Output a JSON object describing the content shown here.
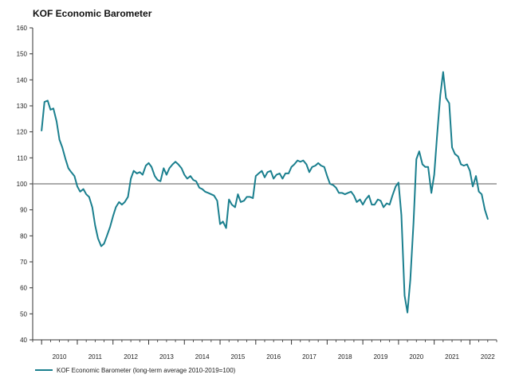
{
  "chart_data": {
    "type": "line",
    "title": "KOF Economic Barometer",
    "xlabel": "",
    "ylabel": "",
    "ylim": [
      40,
      160
    ],
    "yticks": [
      40,
      50,
      60,
      70,
      80,
      90,
      100,
      110,
      120,
      130,
      140,
      150,
      160
    ],
    "reference_line": 100,
    "x_tick_labels": [
      "2010",
      "2011",
      "2012",
      "2013",
      "2014",
      "2015",
      "2016",
      "2017",
      "2018",
      "2019",
      "2020",
      "2021",
      "2022"
    ],
    "x_start": 2009.75,
    "x_end": 2022.75,
    "legend": {
      "position": "bottom-left"
    },
    "series": [
      {
        "name": "KOF Economic Barometer (long-term average 2010-2019=100)",
        "color": "#1a7f8e",
        "points": [
          [
            2010.0,
            120.5
          ],
          [
            2010.08,
            131.5
          ],
          [
            2010.17,
            132.0
          ],
          [
            2010.25,
            128.5
          ],
          [
            2010.33,
            129.0
          ],
          [
            2010.42,
            124.0
          ],
          [
            2010.5,
            117.0
          ],
          [
            2010.58,
            114.0
          ],
          [
            2010.67,
            109.5
          ],
          [
            2010.75,
            106.0
          ],
          [
            2010.83,
            104.5
          ],
          [
            2010.92,
            103.0
          ],
          [
            2011.0,
            99.0
          ],
          [
            2011.08,
            97.0
          ],
          [
            2011.17,
            98.0
          ],
          [
            2011.25,
            96.0
          ],
          [
            2011.33,
            95.0
          ],
          [
            2011.42,
            91.0
          ],
          [
            2011.5,
            84.0
          ],
          [
            2011.58,
            79.0
          ],
          [
            2011.67,
            76.0
          ],
          [
            2011.75,
            77.0
          ],
          [
            2011.83,
            80.0
          ],
          [
            2011.92,
            83.5
          ],
          [
            2012.0,
            87.5
          ],
          [
            2012.08,
            91.0
          ],
          [
            2012.17,
            93.0
          ],
          [
            2012.25,
            92.0
          ],
          [
            2012.33,
            93.0
          ],
          [
            2012.42,
            95.0
          ],
          [
            2012.5,
            102.0
          ],
          [
            2012.58,
            105.0
          ],
          [
            2012.67,
            104.0
          ],
          [
            2012.75,
            104.5
          ],
          [
            2012.83,
            103.5
          ],
          [
            2012.92,
            107.0
          ],
          [
            2013.0,
            108.0
          ],
          [
            2013.08,
            106.5
          ],
          [
            2013.17,
            103.0
          ],
          [
            2013.25,
            101.5
          ],
          [
            2013.33,
            101.0
          ],
          [
            2013.42,
            106.0
          ],
          [
            2013.5,
            103.5
          ],
          [
            2013.58,
            106.0
          ],
          [
            2013.67,
            107.5
          ],
          [
            2013.75,
            108.5
          ],
          [
            2013.83,
            107.5
          ],
          [
            2013.92,
            106.0
          ],
          [
            2014.0,
            103.5
          ],
          [
            2014.08,
            102.0
          ],
          [
            2014.17,
            103.0
          ],
          [
            2014.25,
            101.5
          ],
          [
            2014.33,
            101.0
          ],
          [
            2014.42,
            98.5
          ],
          [
            2014.5,
            98.0
          ],
          [
            2014.58,
            97.0
          ],
          [
            2014.67,
            96.5
          ],
          [
            2014.75,
            96.0
          ],
          [
            2014.83,
            95.5
          ],
          [
            2014.92,
            93.5
          ],
          [
            2015.0,
            84.5
          ],
          [
            2015.08,
            85.5
          ],
          [
            2015.17,
            83.0
          ],
          [
            2015.25,
            94.0
          ],
          [
            2015.33,
            92.0
          ],
          [
            2015.42,
            91.0
          ],
          [
            2015.5,
            96.0
          ],
          [
            2015.58,
            93.0
          ],
          [
            2015.67,
            93.5
          ],
          [
            2015.75,
            95.0
          ],
          [
            2015.83,
            95.0
          ],
          [
            2015.92,
            94.5
          ],
          [
            2016.0,
            103.0
          ],
          [
            2016.08,
            104.0
          ],
          [
            2016.17,
            105.0
          ],
          [
            2016.25,
            102.5
          ],
          [
            2016.33,
            104.5
          ],
          [
            2016.42,
            105.0
          ],
          [
            2016.5,
            102.0
          ],
          [
            2016.58,
            103.5
          ],
          [
            2016.67,
            104.0
          ],
          [
            2016.75,
            102.0
          ],
          [
            2016.83,
            104.0
          ],
          [
            2016.92,
            104.0
          ],
          [
            2017.0,
            106.5
          ],
          [
            2017.08,
            107.5
          ],
          [
            2017.17,
            109.0
          ],
          [
            2017.25,
            108.5
          ],
          [
            2017.33,
            109.0
          ],
          [
            2017.42,
            107.5
          ],
          [
            2017.5,
            104.5
          ],
          [
            2017.58,
            106.5
          ],
          [
            2017.67,
            107.0
          ],
          [
            2017.75,
            108.0
          ],
          [
            2017.83,
            107.0
          ],
          [
            2017.92,
            106.5
          ],
          [
            2018.0,
            103.0
          ],
          [
            2018.08,
            100.0
          ],
          [
            2018.17,
            99.5
          ],
          [
            2018.25,
            98.5
          ],
          [
            2018.33,
            96.5
          ],
          [
            2018.42,
            96.5
          ],
          [
            2018.5,
            96.0
          ],
          [
            2018.58,
            96.5
          ],
          [
            2018.67,
            97.0
          ],
          [
            2018.75,
            95.5
          ],
          [
            2018.83,
            93.0
          ],
          [
            2018.92,
            94.0
          ],
          [
            2019.0,
            92.0
          ],
          [
            2019.08,
            94.0
          ],
          [
            2019.17,
            95.5
          ],
          [
            2019.25,
            92.0
          ],
          [
            2019.33,
            92.0
          ],
          [
            2019.42,
            94.0
          ],
          [
            2019.5,
            93.5
          ],
          [
            2019.58,
            91.0
          ],
          [
            2019.67,
            92.5
          ],
          [
            2019.75,
            92.0
          ],
          [
            2019.83,
            95.5
          ],
          [
            2019.92,
            99.0
          ],
          [
            2020.0,
            100.5
          ],
          [
            2020.08,
            88.0
          ],
          [
            2020.17,
            57.0
          ],
          [
            2020.25,
            50.5
          ],
          [
            2020.33,
            63.0
          ],
          [
            2020.42,
            85.0
          ],
          [
            2020.5,
            109.5
          ],
          [
            2020.58,
            112.5
          ],
          [
            2020.67,
            107.5
          ],
          [
            2020.75,
            106.5
          ],
          [
            2020.83,
            106.5
          ],
          [
            2020.92,
            96.5
          ],
          [
            2021.0,
            103.5
          ],
          [
            2021.08,
            118.5
          ],
          [
            2021.17,
            134.0
          ],
          [
            2021.25,
            143.0
          ],
          [
            2021.33,
            133.0
          ],
          [
            2021.42,
            131.0
          ],
          [
            2021.5,
            114.0
          ],
          [
            2021.58,
            111.5
          ],
          [
            2021.67,
            110.5
          ],
          [
            2021.75,
            107.5
          ],
          [
            2021.83,
            107.0
          ],
          [
            2021.92,
            107.5
          ],
          [
            2022.0,
            105.0
          ],
          [
            2022.08,
            99.0
          ],
          [
            2022.17,
            103.0
          ],
          [
            2022.25,
            97.0
          ],
          [
            2022.33,
            96.0
          ],
          [
            2022.42,
            90.0
          ],
          [
            2022.5,
            86.5
          ]
        ]
      }
    ]
  }
}
